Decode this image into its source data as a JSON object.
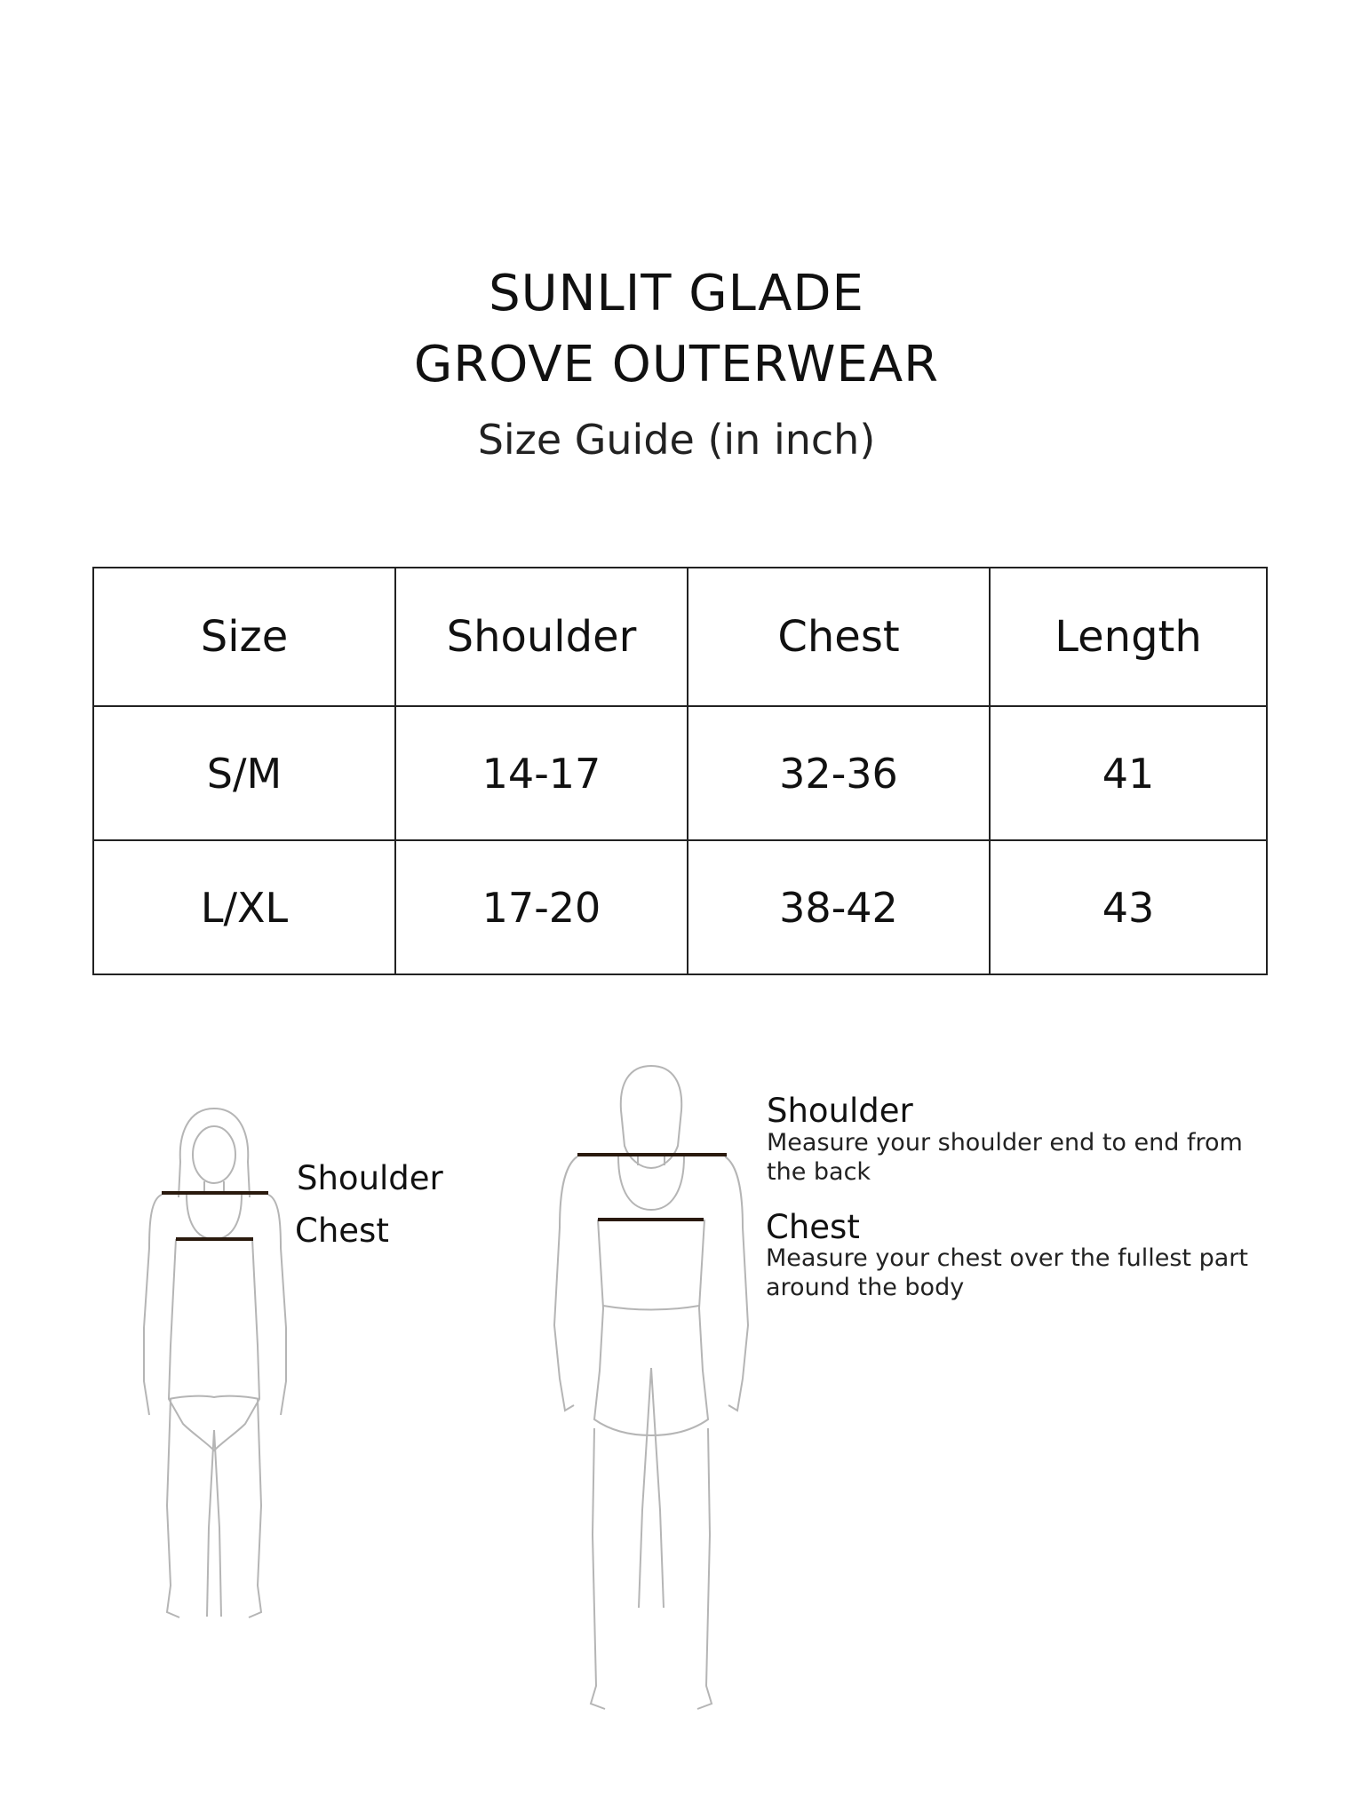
{
  "title": {
    "line1": "SUNLIT GLADE",
    "line2": "GROVE OUTERWEAR"
  },
  "subtitle": "Size Guide (in inch)",
  "table": {
    "headers": [
      "Size",
      "Shoulder",
      "Chest",
      "Length"
    ],
    "rows": [
      [
        "S/M",
        "14-17",
        "32-36",
        "41"
      ],
      [
        "L/XL",
        "17-20",
        "38-42",
        "43"
      ]
    ]
  },
  "female_figure": {
    "shoulder_label": "Shoulder",
    "chest_label": "Chest"
  },
  "male_figure": {
    "shoulder_heading": "Shoulder",
    "shoulder_desc_1": "Measure your shoulder end to end from",
    "shoulder_desc_2": "the back",
    "chest_heading": "Chest",
    "chest_desc_1": "Measure your chest over the fullest part",
    "chest_desc_2": "around the body"
  },
  "colors": {
    "measure_line": "#2a1a0e",
    "figure_outline": "#b5b5b5"
  }
}
